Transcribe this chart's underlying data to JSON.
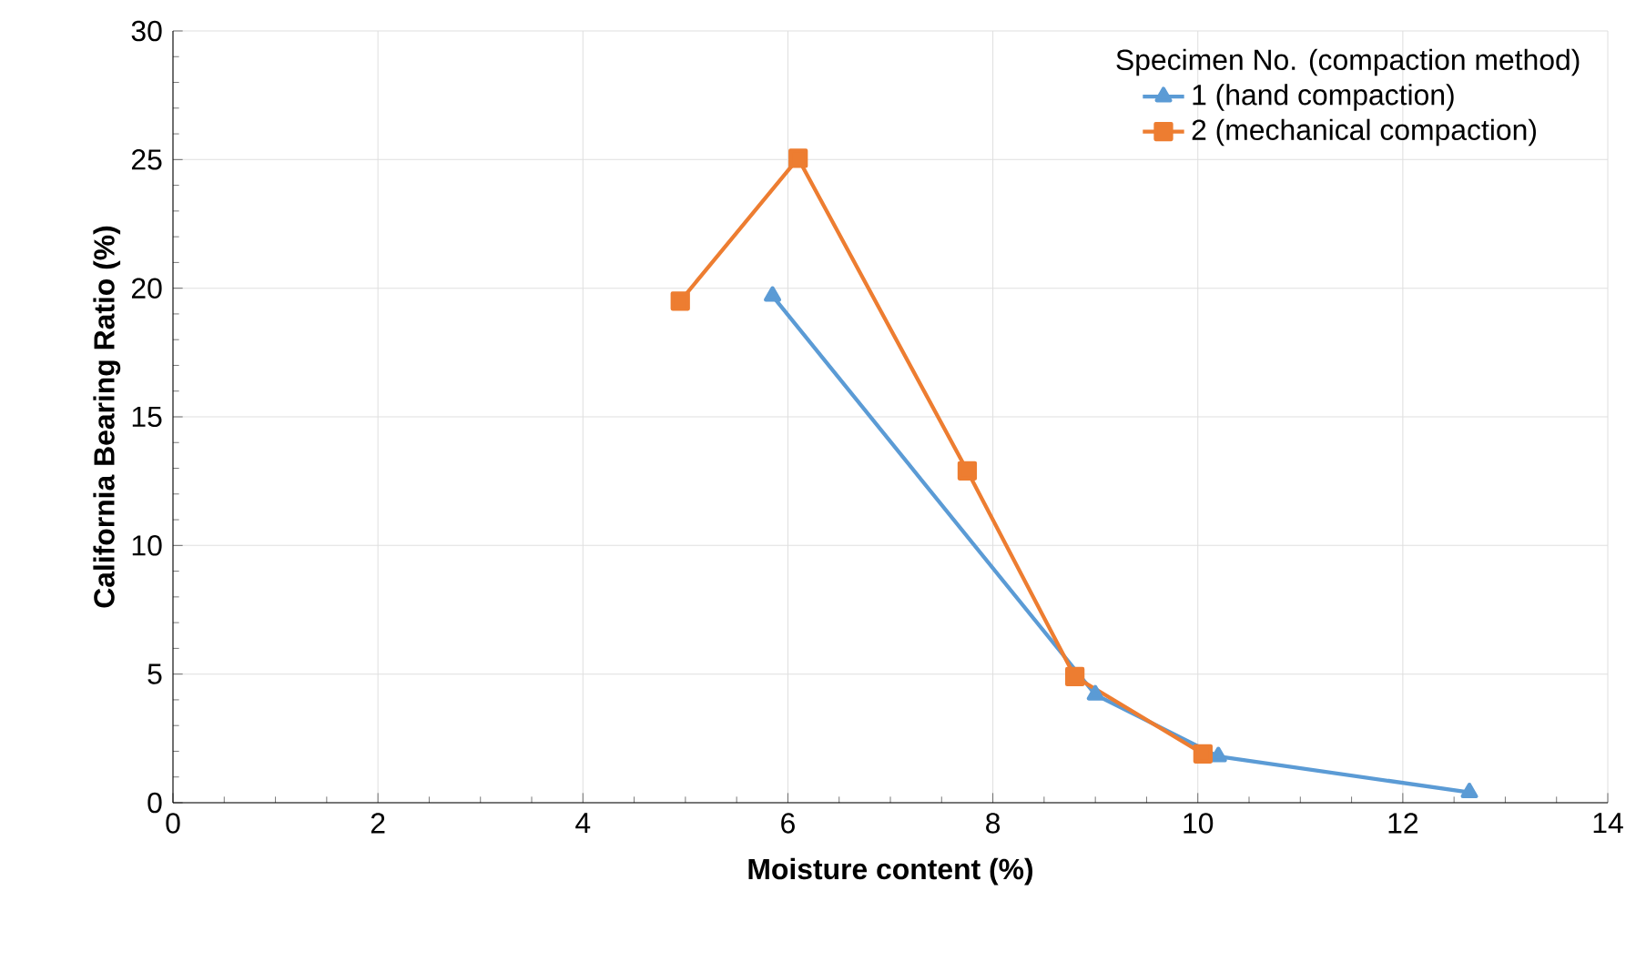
{
  "chart_data": {
    "type": "line",
    "xlabel": "Moisture content (%)",
    "ylabel": "California Bearing Ratio (%)",
    "legend_title": "Specimen No. (compaction method)",
    "xlim": [
      0,
      14
    ],
    "xticks": [
      0,
      2,
      4,
      6,
      8,
      10,
      12,
      14
    ],
    "ylim": [
      0,
      30
    ],
    "yticks": [
      0,
      5,
      10,
      15,
      20,
      25,
      30
    ],
    "grid": true,
    "legend": "top right",
    "series": [
      {
        "name": "1  (hand compaction)",
        "color": "#5b9bd5",
        "marker": "triangle",
        "x": [
          5.85,
          9.0,
          10.2,
          12.65
        ],
        "values": [
          19.7,
          4.2,
          1.8,
          0.4
        ]
      },
      {
        "name": "2  (mechanical compaction)",
        "color": "#ed7d31",
        "marker": "square",
        "x": [
          4.95,
          6.1,
          7.75,
          8.8,
          10.05
        ],
        "values": [
          19.5,
          25.05,
          12.9,
          4.9,
          1.9
        ]
      }
    ]
  }
}
